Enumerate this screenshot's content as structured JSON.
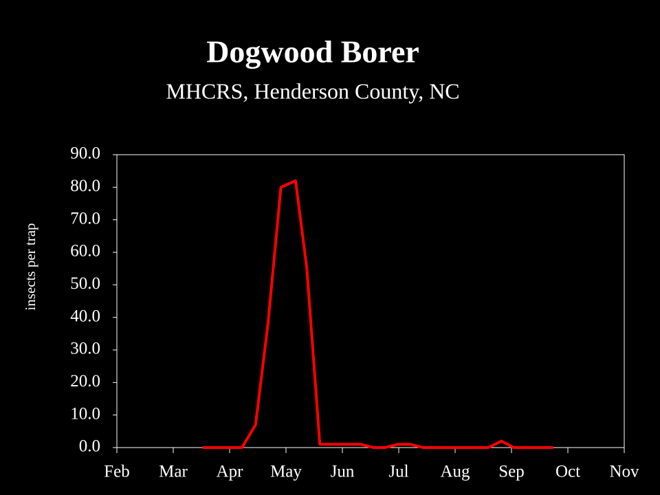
{
  "chart_data": {
    "type": "line",
    "title": "Dogwood Borer",
    "subtitle": "MHCRS, Henderson County, NC",
    "y_label": "insects per trap",
    "x": [
      1.52,
      2.22,
      2.46,
      2.68,
      2.91,
      3.17,
      3.37,
      3.6,
      4.33,
      4.55,
      4.76,
      4.98,
      5.21,
      5.43,
      6.59,
      6.82,
      7.04,
      7.74
    ],
    "series": [
      {
        "name": "Dogwood Borer",
        "color": "#ff0000",
        "values": [
          0,
          0,
          7,
          38,
          80,
          82,
          55,
          1,
          1,
          0,
          0,
          1,
          1,
          0,
          0,
          2,
          0,
          0
        ]
      }
    ],
    "xlim": [
      0,
      9
    ],
    "xticks": [
      {
        "value": 0,
        "label": "Feb"
      },
      {
        "value": 1,
        "label": "Mar"
      },
      {
        "value": 2,
        "label": "Apr"
      },
      {
        "value": 3,
        "label": "May"
      },
      {
        "value": 4,
        "label": "Jun"
      },
      {
        "value": 5,
        "label": "Jul"
      },
      {
        "value": 6,
        "label": "Aug"
      },
      {
        "value": 7,
        "label": "Sep"
      },
      {
        "value": 8,
        "label": "Oct"
      },
      {
        "value": 9,
        "label": "Nov"
      }
    ],
    "ylim": [
      0,
      90
    ],
    "yticks": [
      {
        "value": 0,
        "label": "0.0"
      },
      {
        "value": 10,
        "label": "10.0"
      },
      {
        "value": 20,
        "label": "20.0"
      },
      {
        "value": 30,
        "label": "30.0"
      },
      {
        "value": 40,
        "label": "40.0"
      },
      {
        "value": 50,
        "label": "50.0"
      },
      {
        "value": 60,
        "label": "60.0"
      },
      {
        "value": 70,
        "label": "70.0"
      },
      {
        "value": 80,
        "label": "80.0"
      },
      {
        "value": 90,
        "label": "90.0"
      }
    ],
    "grid": false
  }
}
